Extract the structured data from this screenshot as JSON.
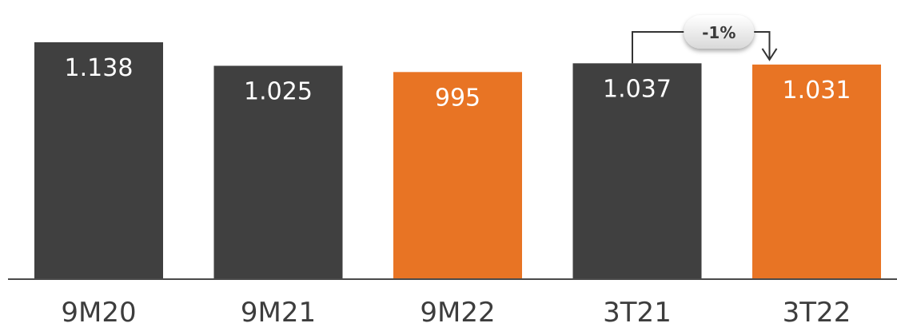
{
  "chart_data": {
    "type": "bar",
    "categories": [
      "9M20",
      "9M21",
      "9M22",
      "3T21",
      "3T22"
    ],
    "values": [
      1138,
      1025,
      995,
      1037,
      1031
    ],
    "value_labels": [
      "1.138",
      "1.025",
      "995",
      "1.037",
      "1.031"
    ],
    "bar_colors": [
      "#404040",
      "#404040",
      "#e87424",
      "#404040",
      "#e87424"
    ],
    "ylim": [
      0,
      1138
    ],
    "grid": false,
    "annotation": {
      "text": "-1%",
      "from": "3T21",
      "to": "3T22"
    }
  }
}
